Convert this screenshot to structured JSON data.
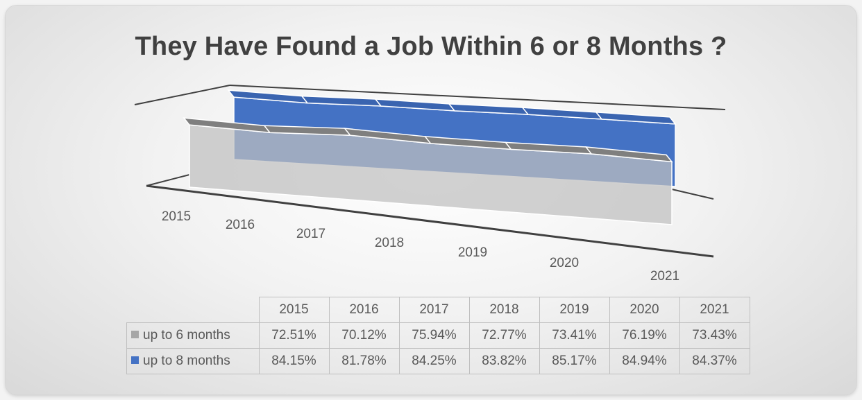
{
  "chart_data": {
    "type": "area",
    "variant": "3d",
    "title": "They Have Found a Job Within 6 or 8 Months ?",
    "categories": [
      "2015",
      "2016",
      "2017",
      "2018",
      "2019",
      "2020",
      "2021"
    ],
    "series": [
      {
        "name": "up to 6 months",
        "values": [
          72.51,
          70.12,
          75.94,
          72.77,
          73.41,
          76.19,
          73.43
        ],
        "color": "#a6a6a6",
        "labels": [
          "72.51%",
          "70.12%",
          "75.94%",
          "72.77%",
          "73.41%",
          "76.19%",
          "73.43%"
        ]
      },
      {
        "name": "up to 8 months",
        "values": [
          84.15,
          81.78,
          84.25,
          83.82,
          85.17,
          84.94,
          84.37
        ],
        "color": "#4472c4",
        "labels": [
          "84.15%",
          "81.78%",
          "84.25%",
          "83.82%",
          "85.17%",
          "84.94%",
          "84.37%"
        ]
      }
    ],
    "legend": "data table",
    "data_table": true,
    "grid": false
  }
}
